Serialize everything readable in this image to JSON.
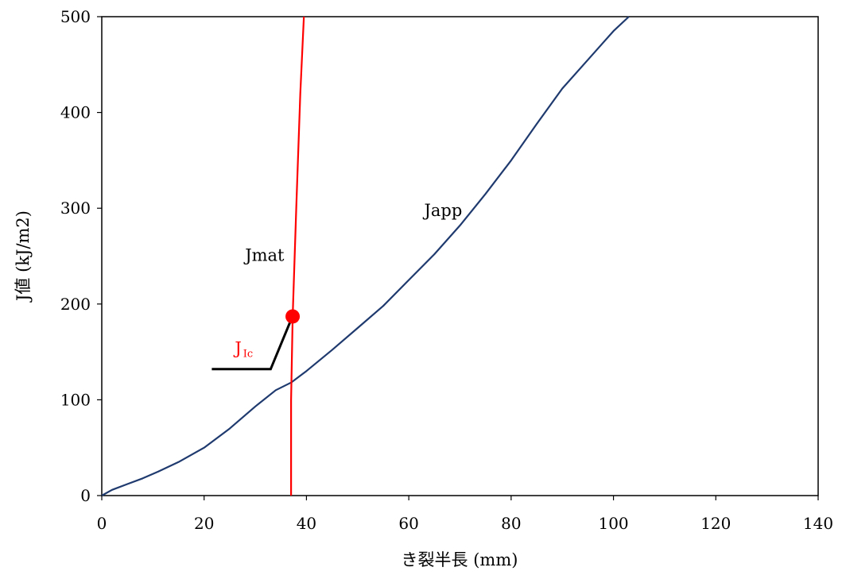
{
  "chart_data": {
    "type": "line",
    "xlabel": "き裂半長 (mm)",
    "ylabel": "J値 (kJ/m2)",
    "xlim": [
      0,
      140
    ],
    "ylim": [
      0,
      500
    ],
    "x_ticks": [
      "0",
      "20",
      "40",
      "60",
      "80",
      "100",
      "120",
      "140"
    ],
    "y_ticks": [
      "0",
      "100",
      "200",
      "300",
      "400",
      "500"
    ],
    "grid": false,
    "legend": "none",
    "series": [
      {
        "name": "Japp",
        "color": "#1f3a6e",
        "points": [
          [
            0,
            0
          ],
          [
            2,
            6
          ],
          [
            5,
            12
          ],
          [
            8,
            18
          ],
          [
            11,
            25
          ],
          [
            15,
            35
          ],
          [
            20,
            50
          ],
          [
            25,
            70
          ],
          [
            30,
            93
          ],
          [
            34,
            110
          ],
          [
            37,
            118
          ],
          [
            40,
            130
          ],
          [
            45,
            152
          ],
          [
            50,
            175
          ],
          [
            55,
            198
          ],
          [
            60,
            225
          ],
          [
            65,
            252
          ],
          [
            70,
            282
          ],
          [
            75,
            315
          ],
          [
            80,
            350
          ],
          [
            85,
            388
          ],
          [
            90,
            425
          ],
          [
            95,
            455
          ],
          [
            100,
            485
          ],
          [
            103,
            500
          ]
        ]
      },
      {
        "name": "Jmat",
        "color": "#ff0000",
        "points": [
          [
            37,
            0
          ],
          [
            37,
            100
          ],
          [
            37.3,
            187
          ],
          [
            38,
            300
          ],
          [
            38.8,
            420
          ],
          [
            39.5,
            500
          ]
        ]
      }
    ],
    "annotations": [
      {
        "text": "Japp",
        "x": 63,
        "y": 292
      },
      {
        "text": "Jmat",
        "x": 28,
        "y": 245
      },
      {
        "text": "J",
        "sub": "Ic",
        "color": "#ff0000",
        "x": 26,
        "y": 148
      }
    ],
    "marker": {
      "x": 37.3,
      "y": 187,
      "color": "#ff0000"
    },
    "leader_line": [
      [
        21.5,
        132
      ],
      [
        33,
        132
      ],
      [
        36.8,
        181
      ]
    ]
  }
}
